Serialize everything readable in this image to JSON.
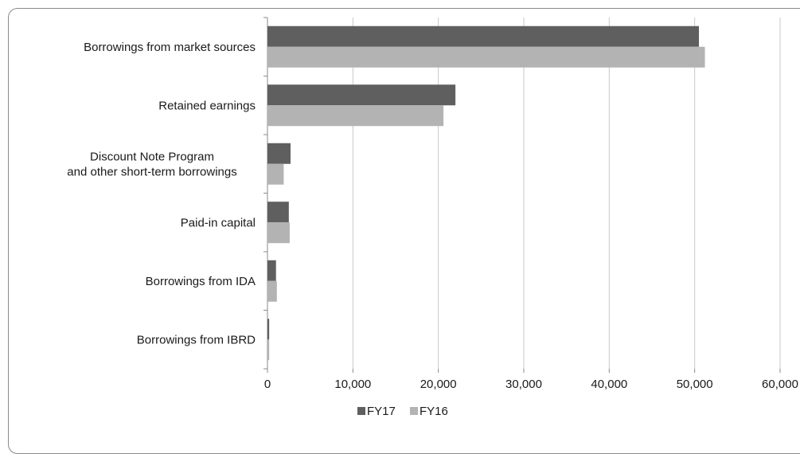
{
  "chart_data": {
    "type": "bar",
    "orientation": "horizontal",
    "categories": [
      "Borrowings from market sources",
      "Retained earnings",
      "Discount Note Program\nand other short-term borrowings",
      "Paid-in capital",
      "Borrowings from IDA",
      "Borrowings from IBRD"
    ],
    "series": [
      {
        "name": "FY17",
        "values": [
          50500,
          22000,
          2700,
          2500,
          1000,
          200
        ]
      },
      {
        "name": "FY16",
        "values": [
          51200,
          20600,
          1900,
          2600,
          1100,
          200
        ]
      }
    ],
    "xlim": [
      0,
      60000
    ],
    "xticks": [
      0,
      10000,
      20000,
      30000,
      40000,
      50000,
      60000
    ],
    "xtick_labels": [
      "0",
      "10,000",
      "20,000",
      "30,000",
      "40,000",
      "50,000",
      "60,000"
    ],
    "grid": "vertical",
    "legend_position": "bottom",
    "colors": {
      "FY17": "#5f5f5f",
      "FY16": "#b3b3b3",
      "grid": "#c8c8c8",
      "axis": "#8a8a8a"
    }
  }
}
